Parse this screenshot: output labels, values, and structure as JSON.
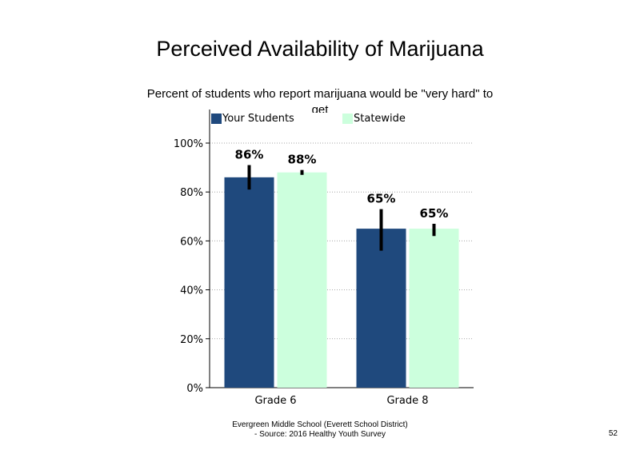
{
  "chart_data": {
    "type": "bar",
    "title": "Perceived Availability of Marijuana",
    "subtitle": "Percent of students  who report marijuana would  be \"very hard\" to get",
    "categories": [
      "Grade 6",
      "Grade 8"
    ],
    "series": [
      {
        "name": "Your Students",
        "color": "#1f497d",
        "values": [
          86,
          65
        ],
        "labels": [
          "86%",
          "65%"
        ],
        "error": [
          [
            81,
            91
          ],
          [
            56,
            73
          ]
        ]
      },
      {
        "name": "Statewide",
        "color": "#ccffdd",
        "values": [
          88,
          65
        ],
        "labels": [
          "88%",
          "65%"
        ],
        "error": [
          [
            87,
            89
          ],
          [
            62,
            67
          ]
        ]
      }
    ],
    "yticks": [
      "0%",
      "20%",
      "40%",
      "60%",
      "80%",
      "100%"
    ],
    "ylim": [
      0,
      100
    ],
    "grid": "horizontal dotted",
    "legend": "top"
  },
  "footer": {
    "line1": "Evergreen Middle School (Everett School District)",
    "line2": "- Source: 2016 Healthy  Youth Survey"
  },
  "page_number": "52"
}
